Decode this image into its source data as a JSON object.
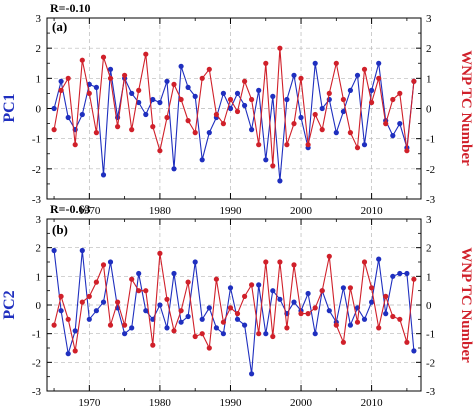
{
  "chart_data": [
    {
      "type": "line",
      "panel_label": "(a)",
      "r_label": "R=-0.10",
      "ylabel_left": "PC1",
      "ylabel_right": "WNP TC Number",
      "xlim": [
        1964,
        2017
      ],
      "ylim": [
        -3,
        3
      ],
      "xticks": [
        1970,
        1980,
        1990,
        2000,
        2010
      ],
      "yticks": [
        -3,
        -2,
        -1,
        0,
        1,
        2,
        3
      ],
      "xtick_labels": [
        "1970",
        "1980",
        "1990",
        "2000",
        "2010"
      ],
      "ytick_labels_left": [
        "-3",
        "-2",
        "-1",
        "0",
        "1",
        "2",
        "3"
      ],
      "ytick_labels_right": [
        "-3",
        "-2",
        "-1",
        "0",
        "1",
        "2",
        "3"
      ],
      "grid": true,
      "x": [
        1965,
        1966,
        1967,
        1968,
        1969,
        1970,
        1971,
        1972,
        1973,
        1974,
        1975,
        1976,
        1977,
        1978,
        1979,
        1980,
        1981,
        1982,
        1983,
        1984,
        1985,
        1986,
        1987,
        1988,
        1989,
        1990,
        1991,
        1992,
        1993,
        1994,
        1995,
        1996,
        1997,
        1998,
        1999,
        2000,
        2001,
        2002,
        2003,
        2004,
        2005,
        2006,
        2007,
        2008,
        2009,
        2010,
        2011,
        2012,
        2013,
        2014,
        2015,
        2016
      ],
      "series": [
        {
          "color": "#1f2fbf",
          "values": [
            0.0,
            0.9,
            -0.3,
            -0.7,
            -0.2,
            0.8,
            0.7,
            -2.2,
            1.3,
            -0.3,
            1.0,
            0.5,
            0.2,
            -0.2,
            0.3,
            0.2,
            0.9,
            -2.0,
            1.4,
            0.7,
            0.4,
            -1.7,
            -0.8,
            -0.3,
            0.5,
            0.0,
            0.5,
            0.1,
            -0.7,
            0.6,
            -1.7,
            0.4,
            -2.4,
            0.3,
            1.1,
            -0.3,
            -1.3,
            1.5,
            0.0,
            0.3,
            -0.8,
            -0.1,
            0.6,
            1.1,
            -1.2,
            0.6,
            1.5,
            -0.4,
            -0.9,
            -0.5,
            -1.3,
            0.9
          ]
        },
        {
          "color": "#d0202a",
          "values": [
            -0.7,
            0.6,
            1.0,
            -1.2,
            1.6,
            0.5,
            -0.8,
            1.7,
            1.0,
            -0.6,
            1.1,
            -0.7,
            0.6,
            1.8,
            -0.6,
            -1.4,
            -0.3,
            0.8,
            0.3,
            -0.4,
            -0.8,
            1.0,
            1.3,
            -0.2,
            -0.5,
            0.3,
            -0.1,
            0.9,
            0.3,
            -1.2,
            1.5,
            -1.9,
            2.0,
            -1.2,
            -0.5,
            1.0,
            -1.2,
            -0.2,
            -0.7,
            0.5,
            1.5,
            0.3,
            -0.8,
            -1.3,
            1.3,
            0.2,
            1.0,
            -0.5,
            0.3,
            0.5,
            -1.4,
            0.9
          ]
        }
      ]
    },
    {
      "type": "line",
      "panel_label": "(b)",
      "r_label": "R=-0.63",
      "ylabel_left": "PC2",
      "ylabel_right": "WNP TC Number",
      "xlim": [
        1964,
        2017
      ],
      "ylim": [
        -3,
        3
      ],
      "xticks": [
        1970,
        1980,
        1990,
        2000,
        2010
      ],
      "yticks": [
        -3,
        -2,
        -1,
        0,
        1,
        2,
        3
      ],
      "xtick_labels": [
        "1970",
        "1980",
        "1990",
        "2000",
        "2010"
      ],
      "ytick_labels_left": [
        "-3",
        "-2",
        "-1",
        "0",
        "1",
        "2",
        "3"
      ],
      "ytick_labels_right": [
        "-3",
        "-2",
        "-1",
        "0",
        "1",
        "2",
        "3"
      ],
      "grid": true,
      "x": [
        1965,
        1966,
        1967,
        1968,
        1969,
        1970,
        1971,
        1972,
        1973,
        1974,
        1975,
        1976,
        1977,
        1978,
        1979,
        1980,
        1981,
        1982,
        1983,
        1984,
        1985,
        1986,
        1987,
        1988,
        1989,
        1990,
        1991,
        1992,
        1993,
        1994,
        1995,
        1996,
        1997,
        1998,
        1999,
        2000,
        2001,
        2002,
        2003,
        2004,
        2005,
        2006,
        2007,
        2008,
        2009,
        2010,
        2011,
        2012,
        2013,
        2014,
        2015,
        2016
      ],
      "series": [
        {
          "color": "#1f2fbf",
          "values": [
            1.9,
            -0.2,
            -1.7,
            -0.9,
            1.9,
            -0.5,
            -0.2,
            0.1,
            1.5,
            -0.1,
            -1.0,
            -0.8,
            1.1,
            -0.2,
            -0.5,
            0.0,
            -0.8,
            1.1,
            -0.6,
            -0.4,
            1.5,
            -0.5,
            -0.1,
            -0.8,
            -1.0,
            0.6,
            -0.5,
            -0.7,
            -2.4,
            0.7,
            -1.0,
            0.5,
            0.2,
            -0.3,
            0.1,
            -0.2,
            0.4,
            -1.0,
            0.5,
            -0.2,
            -0.6,
            0.6,
            -0.7,
            -0.1,
            -0.5,
            0.1,
            1.6,
            -0.3,
            1.0,
            1.1,
            1.1,
            -1.6
          ]
        },
        {
          "color": "#d0202a",
          "values": [
            -0.7,
            0.3,
            -0.5,
            -1.6,
            0.1,
            0.3,
            0.8,
            1.4,
            -0.7,
            0.1,
            -0.7,
            0.9,
            0.5,
            0.5,
            -1.4,
            1.8,
            0.2,
            -0.9,
            -0.2,
            0.8,
            -1.1,
            -1.0,
            -1.5,
            0.9,
            -0.6,
            -0.1,
            -0.3,
            0.3,
            0.7,
            -1.0,
            1.5,
            -1.1,
            1.5,
            -0.8,
            1.4,
            -0.3,
            -0.3,
            -0.1,
            0.5,
            1.7,
            -0.7,
            -1.3,
            0.6,
            -0.6,
            1.5,
            0.6,
            -0.8,
            0.3,
            -0.4,
            -0.5,
            -1.3,
            0.9
          ]
        }
      ]
    }
  ]
}
